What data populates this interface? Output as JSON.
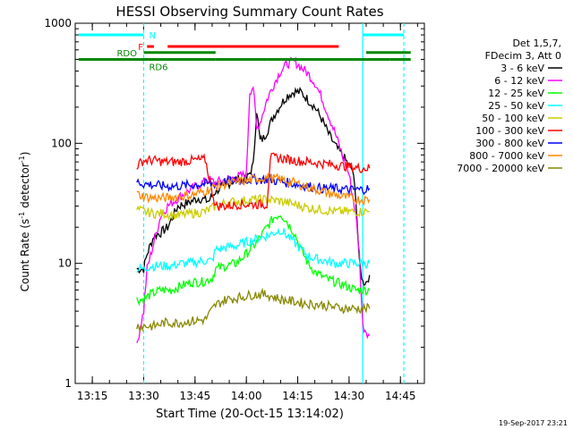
{
  "chart_data": {
    "type": "line",
    "title": "HESSI Observing Summary Count Rates",
    "xlabel": "Start Time (20-Oct-15 13:14:02)",
    "ylabel_main": "Count Rate (s",
    "ylabel_sup1": "-1",
    "ylabel_mid": " detector",
    "ylabel_sup2": "-1",
    "ylabel_end": ")",
    "footer_timestamp": "19-Sep-2017 23:21",
    "y_scale": "log",
    "ylim": [
      1,
      1000
    ],
    "xlim_minutes": [
      "13:10",
      "14:52"
    ],
    "x_ticks": [
      "13:15",
      "13:30",
      "13:45",
      "14:00",
      "14:15",
      "14:30",
      "14:45"
    ],
    "y_ticks": [
      {
        "value": 1,
        "label": "1"
      },
      {
        "value": 10,
        "label": "10"
      },
      {
        "value": 100,
        "label": "100"
      },
      {
        "value": 1000,
        "label": "1000"
      }
    ],
    "legend": {
      "placement": "right",
      "header": [
        "Det 1,5,7,",
        "FDecim 3, Att 0"
      ],
      "entries": [
        {
          "label": "3 - 6 keV",
          "color": "#000000"
        },
        {
          "label": "6 - 12 keV",
          "color": "#ff00ff"
        },
        {
          "label": "12 - 25 keV",
          "color": "#00ff00"
        },
        {
          "label": "25 - 50 keV",
          "color": "#00ffff"
        },
        {
          "label": "50 - 100 keV",
          "color": "#cccc00"
        },
        {
          "label": "100 - 300 keV",
          "color": "#ff0000"
        },
        {
          "label": "300 - 800 keV",
          "color": "#0000ff"
        },
        {
          "label": "800 - 7000 keV",
          "color": "#ff8800"
        },
        {
          "label": "7000 - 20000 keV",
          "color": "#888800"
        }
      ]
    },
    "vertical_lines": [
      {
        "time": "13:30",
        "style": "dashed",
        "color": "#00ffff"
      },
      {
        "time": "14:34",
        "style": "solid",
        "color": "#00ffff"
      },
      {
        "time": "14:46",
        "style": "dashed",
        "color": "#00ffff"
      }
    ],
    "status_bars": [
      {
        "label": "N",
        "color": "#00ffff",
        "label_color": "#00ffff",
        "segments": [
          [
            "13:11",
            "13:30"
          ],
          [
            "14:34",
            "14:46"
          ]
        ],
        "level": 800
      },
      {
        "label": "F",
        "color": "#ff0000",
        "label_color": "#ff0000",
        "segments": [
          [
            "13:31",
            "13:33"
          ],
          [
            "13:37",
            "14:27"
          ]
        ],
        "level": 640
      },
      {
        "label": "RDO",
        "color": "#008800",
        "label_color": "#008800",
        "segments": [
          [
            "13:30",
            "13:51"
          ],
          [
            "14:35",
            "14:48"
          ]
        ],
        "level": 570
      },
      {
        "label": "RD6",
        "color": "#008800",
        "label_color": "#008800",
        "segments": [
          [
            "13:11",
            "13:51"
          ],
          [
            "13:51",
            "14:06"
          ],
          [
            "14:06",
            "14:42"
          ],
          [
            "14:42",
            "14:48"
          ]
        ],
        "level": 500
      }
    ],
    "series": [
      {
        "name": "3 - 6 keV",
        "color": "#000000",
        "x": [
          "13:28",
          "13:30",
          "13:31",
          "13:33",
          "13:35",
          "13:37",
          "13:40",
          "13:43",
          "13:46",
          "13:49",
          "13:51",
          "13:54",
          "13:57",
          "14:00",
          "14:02",
          "14:03",
          "14:04",
          "14:05",
          "14:06",
          "14:08",
          "14:10",
          "14:12",
          "14:14",
          "14:16",
          "14:18",
          "14:20",
          "14:22",
          "14:24",
          "14:26",
          "14:28",
          "14:30",
          "14:31",
          "14:32",
          "14:33",
          "14:34",
          "14:35",
          "14:36"
        ],
        "y": [
          9,
          9,
          12,
          17,
          18,
          20,
          30,
          32,
          35,
          33,
          40,
          45,
          50,
          50,
          65,
          190,
          105,
          110,
          125,
          170,
          210,
          250,
          270,
          265,
          230,
          200,
          160,
          120,
          95,
          80,
          65,
          60,
          35,
          10,
          7,
          7,
          8
        ]
      },
      {
        "name": "6 - 12 keV",
        "color": "#ff00ff",
        "x": [
          "13:28",
          "13:29",
          "13:30",
          "13:31",
          "13:33",
          "13:35",
          "13:37",
          "13:40",
          "13:43",
          "13:46",
          "13:49",
          "13:51",
          "13:54",
          "13:57",
          "14:00",
          "14:01",
          "14:02",
          "14:03",
          "14:04",
          "14:06",
          "14:08",
          "14:10",
          "14:12",
          "14:14",
          "14:16",
          "14:18",
          "14:20",
          "14:22",
          "14:24",
          "14:26",
          "14:28",
          "14:30",
          "14:32",
          "14:33",
          "14:34",
          "14:36"
        ],
        "y": [
          2,
          3,
          4,
          9,
          15,
          25,
          30,
          35,
          40,
          45,
          50,
          47,
          50,
          52,
          55,
          270,
          300,
          130,
          150,
          230,
          310,
          400,
          460,
          480,
          430,
          380,
          320,
          240,
          170,
          120,
          80,
          55,
          25,
          12,
          3,
          2.5
        ]
      },
      {
        "name": "12 - 25 keV",
        "color": "#00ff00",
        "x": [
          "13:28",
          "13:30",
          "13:32",
          "13:35",
          "13:38",
          "13:41",
          "13:44",
          "13:47",
          "13:50",
          "13:51",
          "13:54",
          "13:57",
          "14:00",
          "14:03",
          "14:06",
          "14:08",
          "14:10",
          "14:12",
          "14:14",
          "14:16",
          "14:18",
          "14:20",
          "14:23",
          "14:26",
          "14:29",
          "14:32",
          "14:34",
          "14:36"
        ],
        "y": [
          5,
          5,
          5.5,
          6,
          6,
          6.5,
          7,
          7,
          7.5,
          9,
          9.5,
          10,
          12,
          15,
          20,
          24,
          26,
          22,
          18,
          13,
          10,
          8.5,
          7.5,
          7,
          6.5,
          6,
          6,
          6
        ]
      },
      {
        "name": "25 - 50 keV",
        "color": "#00ffff",
        "x": [
          "13:28",
          "13:30",
          "13:32",
          "13:35",
          "13:38",
          "13:41",
          "13:44",
          "13:47",
          "13:50",
          "13:51",
          "13:54",
          "13:57",
          "14:00",
          "14:03",
          "14:06",
          "14:08",
          "14:10",
          "14:12",
          "14:14",
          "14:16",
          "14:18",
          "14:20",
          "14:23",
          "14:26",
          "14:29",
          "14:32",
          "14:34",
          "14:36"
        ],
        "y": [
          9,
          9,
          9.5,
          9.5,
          9.5,
          10,
          10,
          10.5,
          10.5,
          13,
          13.5,
          14,
          15,
          16,
          17,
          18,
          19,
          17,
          15,
          13,
          11.5,
          11,
          10.5,
          10,
          10,
          10,
          10,
          10
        ]
      },
      {
        "name": "50 - 100 keV",
        "color": "#cccc00",
        "x": [
          "13:28",
          "13:30",
          "13:33",
          "13:36",
          "13:40",
          "13:44",
          "13:48",
          "13:51",
          "13:54",
          "13:58",
          "14:02",
          "14:06",
          "14:10",
          "14:14",
          "14:18",
          "14:22",
          "14:26",
          "14:30",
          "14:33",
          "14:36"
        ],
        "y": [
          28,
          27,
          26,
          26,
          25,
          26,
          27,
          30,
          32,
          33,
          34,
          34,
          33,
          31,
          29,
          28,
          27,
          27,
          27,
          27
        ]
      },
      {
        "name": "100 - 300 keV",
        "color": "#ff0000",
        "x": [
          "13:28",
          "13:30",
          "13:33",
          "13:36",
          "13:40",
          "13:44",
          "13:48",
          "13:51",
          "13:54",
          "13:58",
          "14:02",
          "14:06",
          "14:07",
          "14:10",
          "14:14",
          "14:18",
          "14:22",
          "14:26",
          "14:30",
          "14:33",
          "14:36"
        ],
        "y": [
          65,
          72,
          72,
          70,
          70,
          72,
          73,
          30,
          30,
          31,
          31,
          31,
          76,
          75,
          72,
          70,
          68,
          66,
          64,
          62,
          62
        ]
      },
      {
        "name": "300 - 800 keV",
        "color": "#0000ff",
        "x": [
          "13:28",
          "13:30",
          "13:33",
          "13:36",
          "13:40",
          "13:44",
          "13:48",
          "13:51",
          "13:54",
          "13:58",
          "14:02",
          "14:06",
          "14:10",
          "14:14",
          "14:18",
          "14:22",
          "14:26",
          "14:30",
          "14:33",
          "14:36"
        ],
        "y": [
          48,
          46,
          45,
          44,
          44,
          45,
          46,
          46,
          48,
          49,
          50,
          50,
          48,
          46,
          44,
          42,
          42,
          41,
          41,
          42
        ]
      },
      {
        "name": "800 - 7000 keV",
        "color": "#ff8800",
        "x": [
          "13:28",
          "13:30",
          "13:33",
          "13:36",
          "13:40",
          "13:44",
          "13:48",
          "13:51",
          "13:54",
          "13:58",
          "14:02",
          "14:06",
          "14:10",
          "14:14",
          "14:18",
          "14:22",
          "14:26",
          "14:30",
          "14:33",
          "14:36"
        ],
        "y": [
          38,
          36,
          35,
          35,
          36,
          37,
          40,
          44,
          46,
          48,
          50,
          52,
          50,
          47,
          43,
          40,
          37,
          35,
          34,
          34
        ]
      },
      {
        "name": "7000 - 20000 keV",
        "color": "#888800",
        "x": [
          "13:28",
          "13:30",
          "13:33",
          "13:36",
          "13:40",
          "13:44",
          "13:48",
          "13:51",
          "13:54",
          "13:58",
          "14:02",
          "14:06",
          "14:10",
          "14:14",
          "14:18",
          "14:22",
          "14:26",
          "14:30",
          "14:33",
          "14:36"
        ],
        "y": [
          3,
          3,
          3,
          3.2,
          3.2,
          3.3,
          3.4,
          4.5,
          5,
          5.2,
          5.5,
          5.5,
          5,
          4.8,
          4.6,
          4.5,
          4.3,
          4.2,
          4.2,
          4.2
        ]
      }
    ]
  }
}
